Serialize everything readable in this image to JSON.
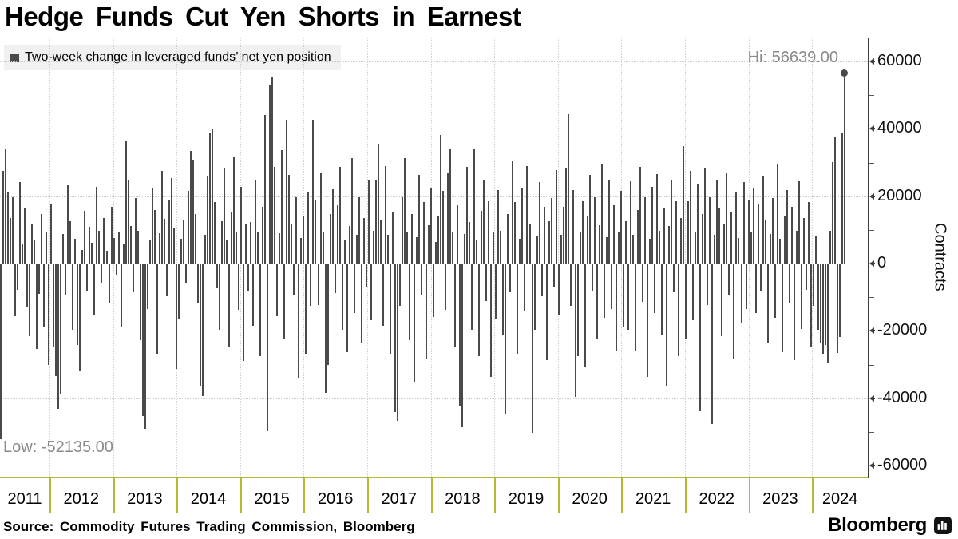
{
  "title": "Hedge Funds Cut Yen Shorts in Earnest",
  "legend": {
    "label": "Two-week change in leveraged funds’ net yen position",
    "swatch_color": "#4a4a4a"
  },
  "annotations": {
    "high_label": "Hi: 56639.00",
    "low_label": "Low: -52135.00",
    "high_value": 56639,
    "low_value": -52135
  },
  "y_axis": {
    "title": "Contracts",
    "major_ticks": [
      60000,
      40000,
      20000,
      0,
      -20000,
      -40000,
      -60000
    ],
    "major_tick_labels": [
      "60000",
      "40000",
      "20000",
      "0",
      "-20000",
      "-40000",
      "-60000"
    ],
    "minor_ticks": [
      50000,
      30000,
      10000,
      -10000,
      -30000,
      -50000
    ]
  },
  "x_axis": {
    "years": [
      "2011",
      "2012",
      "2013",
      "2014",
      "2015",
      "2016",
      "2017",
      "2018",
      "2019",
      "2020",
      "2021",
      "2022",
      "2023",
      "2024"
    ]
  },
  "source": "Source: Commodity Futures Trading Commission, Bloomberg",
  "brand": {
    "name": "Bloomberg",
    "icon": "bloomberg-terminal-icon"
  },
  "colors": {
    "bar": "#4a4a4a",
    "axis": "#3f3f3f",
    "grid": "#c9c9c9",
    "annotation_text": "#8a8a8a",
    "year_band": "#b3bb34",
    "legend_bg": "#f1f1f1"
  },
  "chart_data": {
    "type": "bar",
    "title": "Hedge Funds Cut Yen Shorts in Earnest",
    "series_label": "Two-week change in leveraged funds’ net yen position",
    "ylabel": "Contracts",
    "ylim": [
      -60000,
      60000
    ],
    "grid": true,
    "frequency": "two-week",
    "categories": [
      "2011",
      "2012",
      "2013",
      "2014",
      "2015",
      "2016",
      "2017",
      "2018",
      "2019",
      "2020",
      "2021",
      "2022",
      "2023",
      "2024"
    ],
    "points_per_year": 26,
    "high": 56639,
    "low": -52135,
    "values": [
      -52135,
      27500,
      33800,
      21000,
      13500,
      19800,
      -15600,
      -7800,
      24300,
      5600,
      16400,
      -12800,
      -21500,
      11800,
      6900,
      -25400,
      -8900,
      14800,
      -18700,
      9600,
      -30200,
      17600,
      -24600,
      -33400,
      -43200,
      -38700,
      8700,
      -9400,
      23200,
      12500,
      -19600,
      7300,
      -24100,
      -32100,
      4100,
      15600,
      -8200,
      10900,
      6200,
      -15400,
      22700,
      9800,
      -5600,
      13400,
      3900,
      -11800,
      16800,
      7600,
      -3400,
      9200,
      -18900,
      5800,
      36600,
      24800,
      11200,
      -8600,
      19400,
      9700,
      -22800,
      -45300,
      -49100,
      -13600,
      6800,
      22400,
      15800,
      -26700,
      8900,
      27600,
      13200,
      -9800,
      18700,
      25400,
      10600,
      -31200,
      -16400,
      7400,
      12800,
      -5600,
      21600,
      33400,
      30800,
      14700,
      -11900,
      -36200,
      -39400,
      8600,
      25900,
      38900,
      39800,
      18200,
      -7400,
      -19800,
      12600,
      28400,
      6800,
      -24600,
      15400,
      31800,
      9200,
      -13700,
      22800,
      -28900,
      11600,
      -8400,
      12400,
      -18600,
      24800,
      9600,
      -27400,
      16800,
      44100,
      -49800,
      53200,
      55300,
      28700,
      -15600,
      8900,
      33600,
      -22400,
      42800,
      26400,
      11800,
      -9400,
      19600,
      -33800,
      7600,
      14200,
      -26800,
      21400,
      -12600,
      42600,
      18900,
      -12400,
      26800,
      9400,
      -38400,
      -30200,
      14600,
      22100,
      -8800,
      17400,
      28600,
      -19600,
      6800,
      -26400,
      11200,
      31400,
      -14800,
      8600,
      19800,
      -23600,
      13400,
      -7200,
      24600,
      -16800,
      9800,
      24600,
      35600,
      12800,
      -18400,
      28900,
      8600,
      -26700,
      15400,
      -44100,
      -46700,
      -12600,
      19800,
      31200,
      9400,
      -22800,
      14600,
      -35200,
      7800,
      26400,
      -9600,
      18200,
      -28400,
      11400,
      22600,
      -15800,
      6400,
      14200,
      38200,
      21600,
      -13800,
      26800,
      33800,
      9600,
      -24600,
      17400,
      -42400,
      -48600,
      8800,
      28600,
      12400,
      -19800,
      34200,
      6800,
      -27400,
      15600,
      24800,
      -11200,
      18600,
      -33600,
      9200,
      -16400,
      21800,
      9800,
      -21400,
      -44600,
      14600,
      -8600,
      30400,
      18200,
      -26800,
      7400,
      22600,
      -14200,
      28900,
      11800,
      -50200,
      -19600,
      8400,
      24200,
      -9800,
      16800,
      -28600,
      12600,
      19400,
      -6800,
      27800,
      -15400,
      8600,
      16800,
      28400,
      44300,
      -12600,
      21800,
      -39600,
      -27400,
      9600,
      18600,
      -30800,
      14200,
      26400,
      -8400,
      19800,
      -22600,
      11400,
      29600,
      -16200,
      7800,
      24600,
      -13400,
      17200,
      -25800,
      9400,
      21600,
      -18800,
      12600,
      -19800,
      24400,
      8600,
      -26200,
      15800,
      28800,
      -11400,
      19600,
      -33600,
      7400,
      22800,
      -14600,
      26600,
      9800,
      -21400,
      16400,
      -36400,
      11200,
      24800,
      -8600,
      18400,
      -27600,
      13600,
      34800,
      -22400,
      18600,
      27400,
      -16800,
      9400,
      23800,
      -43800,
      14600,
      28200,
      -12400,
      19800,
      -47600,
      8600,
      24600,
      16400,
      -21600,
      11800,
      26800,
      -9200,
      15400,
      -28400,
      21200,
      7600,
      -17800,
      24200,
      -13600,
      18800,
      9600,
      22400,
      -14800,
      17600,
      -8400,
      26200,
      12800,
      -23600,
      8800,
      19400,
      -16200,
      29600,
      7400,
      -26400,
      14200,
      21800,
      -11600,
      16800,
      -28800,
      9800,
      24400,
      -19400,
      13400,
      -7800,
      18200,
      -24800,
      -12600,
      8400,
      -19800,
      -23400,
      -26800,
      -24200,
      -29400,
      9800,
      30200,
      37800,
      -26500,
      -21800,
      38600,
      56639
    ]
  }
}
